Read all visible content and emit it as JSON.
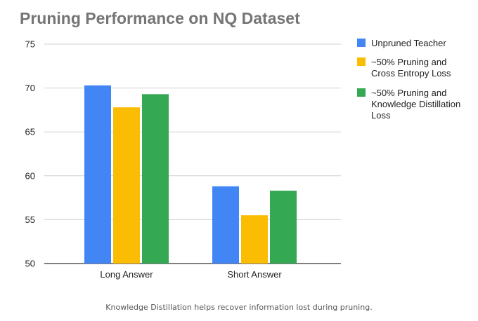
{
  "chart_data": {
    "type": "bar",
    "title": "Pruning Performance on NQ Dataset",
    "xlabel": "",
    "ylabel": "",
    "categories": [
      "Long Answer",
      "Short Answer"
    ],
    "series": [
      {
        "name": "Unpruned Teacher",
        "color": "#4285f4",
        "values": [
          70.3,
          58.8
        ]
      },
      {
        "name": "~50% Pruning and Cross Entropy Loss",
        "color": "#fbbc04",
        "values": [
          67.8,
          55.5
        ]
      },
      {
        "name": "~50% Pruning and Knowledge Distillation Loss",
        "color": "#34a853",
        "values": [
          69.3,
          58.3
        ]
      }
    ],
    "ylim": [
      50,
      75
    ],
    "yticks": [
      50,
      55,
      60,
      65,
      70,
      75
    ],
    "grid": true,
    "legend_position": "right"
  },
  "legend": {
    "items": [
      [
        "Unpruned Teacher"
      ],
      [
        "~50% Pruning and",
        "Cross Entropy Loss"
      ],
      [
        "~50% Pruning and",
        "Knowledge Distillation",
        "Loss"
      ]
    ]
  },
  "caption": "Knowledge Distillation helps recover information lost during pruning."
}
